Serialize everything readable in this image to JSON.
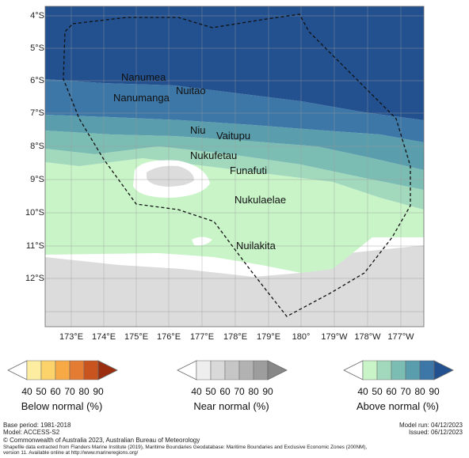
{
  "map": {
    "lat_labels": [
      "4°S",
      "5°S",
      "6°S",
      "7°S",
      "8°S",
      "9°S",
      "10°S",
      "11°S",
      "12°S"
    ],
    "lon_labels": [
      "173°E",
      "174°E",
      "175°E",
      "176°E",
      "177°E",
      "178°E",
      "179°E",
      "180°",
      "179°W",
      "178°W",
      "177°W"
    ],
    "islands": [
      {
        "name": "Nanumea"
      },
      {
        "name": "Nuitao"
      },
      {
        "name": "Nanumanga"
      },
      {
        "name": "Niu"
      },
      {
        "name": "Vaitupu"
      },
      {
        "name": "Nukufetau"
      },
      {
        "name": "Funafuti"
      },
      {
        "name": "Nukulaelae"
      },
      {
        "name": "Nuilakita"
      }
    ]
  },
  "legends": [
    {
      "title": "Below normal (%)",
      "ticks": [
        "40",
        "50",
        "60",
        "70",
        "80",
        "90"
      ],
      "colors": [
        "#fdeda0",
        "#fcd26a",
        "#f6a945",
        "#e47c34",
        "#c9541f",
        "#9c2e10"
      ]
    },
    {
      "title": "Near normal (%)",
      "ticks": [
        "40",
        "50",
        "60",
        "70",
        "80",
        "90"
      ],
      "colors": [
        "#eeeeee",
        "#d9d9d9",
        "#c6c6c6",
        "#b2b2b2",
        "#9d9d9d",
        "#878787"
      ]
    },
    {
      "title": "Above normal (%)",
      "ticks": [
        "40",
        "50",
        "60",
        "70",
        "80",
        "90"
      ],
      "colors": [
        "#c8f4c8",
        "#a2d9bd",
        "#7cbdb3",
        "#5a9dac",
        "#3d77a8",
        "#23518f"
      ]
    }
  ],
  "footer": {
    "base_period": "Base period: 1981-2018",
    "model": "Model: ACCESS-S2",
    "model_run": "Model run: 04/12/2023",
    "issued": "Issued: 06/12/2023",
    "copyright": "© Commonwealth of Australia 2023, Australian Bureau of Meteorology",
    "shapefile_line1": "Shapefile data extracted from Flanders Marine Institute (2019), Maritime Boundaries Geodatabase: Maritime Boundaries and Exclusive Economic Zones (200NM),",
    "shapefile_line2": "version 11. Available online at http://www.marineregions.org/"
  }
}
